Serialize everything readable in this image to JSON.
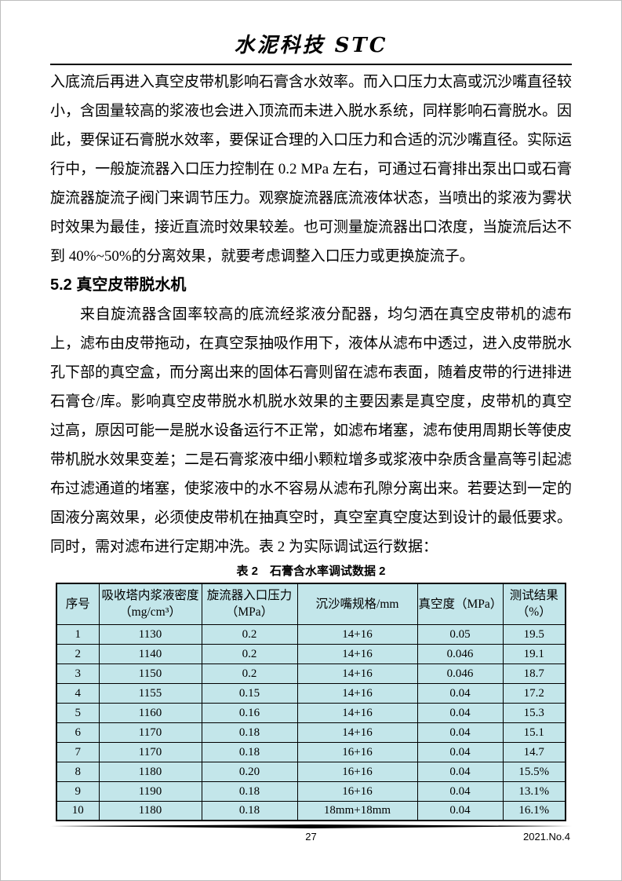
{
  "header": {
    "journal_title": "水泥科技 STC"
  },
  "content": {
    "para1": "入底流后再进入真空皮带机影响石膏含水效率。而入口压力太高或沉沙嘴直径较小，含固量较高的浆液也会进入顶流而未进入脱水系统，同样影响石膏脱水。因此，要保证石膏脱水效率，要保证合理的入口压力和合适的沉沙嘴直径。实际运行中，一般旋流器入口压力控制在 0.2 MPa 左右，可通过石膏排出泵出口或石膏旋流器旋流子阀门来调节压力。观察旋流器底流液体状态，当喷出的浆液为雾状时效果为最佳，接近直流时效果较差。也可测量旋流器出口浓度，当旋流后达不到 40%~50%的分离效果，就要考虑调整入口压力或更换旋流子。",
    "section_heading": "5.2 真空皮带脱水机",
    "para2": "来自旋流器含固率较高的底流经浆液分配器，均匀洒在真空皮带机的滤布上，滤布由皮带拖动，在真空泵抽吸作用下，液体从滤布中透过，进入皮带脱水孔下部的真空盒，而分离出来的固体石膏则留在滤布表面，随着皮带的行进排进石膏仓/库。影响真空皮带脱水机脱水效果的主要因素是真空度，皮带机的真空过高，原因可能一是脱水设备运行不正常，如滤布堵塞，滤布使用周期长等使皮带机脱水效果变差；二是石膏浆液中细小颗粒增多或浆液中杂质含量高等引起滤布过滤通道的堵塞，使浆液中的水不容易从滤布孔隙分离出来。若要达到一定的固液分离效果，必须使皮带机在抽真空时，真空室真空度达到设计的最低要求。同时，需对滤布进行定期冲洗。表 2 为实际调试运行数据："
  },
  "table": {
    "caption": "表 2　石膏含水率调试数据 2",
    "background_color": "#c3e6ea",
    "columns": [
      "序号",
      "吸收塔内浆液密度\n（mg/cm³）",
      "旋流器入口压力\n（MPa）",
      "沉沙嘴规格/mm",
      "真空度（MPa）",
      "测试结果\n（%）"
    ],
    "rows": [
      [
        "1",
        "1130",
        "0.2",
        "14+16",
        "0.05",
        "19.5"
      ],
      [
        "2",
        "1140",
        "0.2",
        "14+16",
        "0.046",
        "19.1"
      ],
      [
        "3",
        "1150",
        "0.2",
        "14+16",
        "0.046",
        "18.7"
      ],
      [
        "4",
        "1155",
        "0.15",
        "14+16",
        "0.04",
        "17.2"
      ],
      [
        "5",
        "1160",
        "0.16",
        "14+16",
        "0.04",
        "15.3"
      ],
      [
        "6",
        "1170",
        "0.18",
        "14+16",
        "0.04",
        "15.1"
      ],
      [
        "7",
        "1170",
        "0.18",
        "16+16",
        "0.04",
        "14.7"
      ],
      [
        "8",
        "1180",
        "0.20",
        "16+16",
        "0.04",
        "15.5%"
      ],
      [
        "9",
        "1190",
        "0.18",
        "16+16",
        "0.04",
        "13.1%"
      ],
      [
        "10",
        "1180",
        "0.18",
        "18mm+18mm",
        "0.04",
        "16.1%"
      ]
    ]
  },
  "footer": {
    "page_number": "27",
    "issue": "2021.No.4"
  }
}
